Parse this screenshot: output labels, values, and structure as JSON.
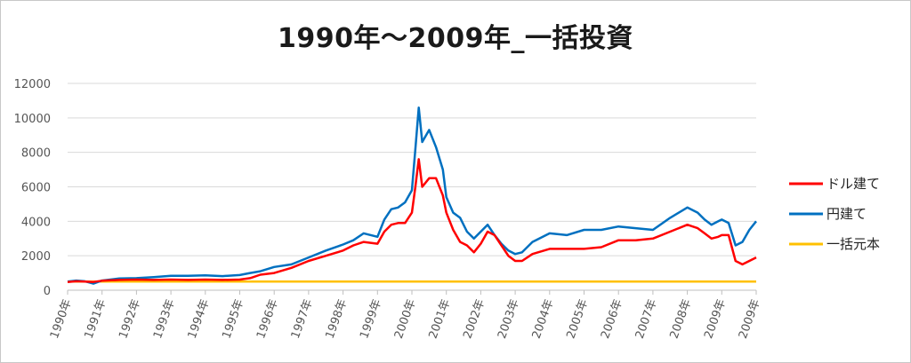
{
  "chart_data": {
    "type": "line",
    "title": "1990年～2009年_一括投資",
    "xlabel": "",
    "ylabel": "",
    "ylim": [
      0,
      12000
    ],
    "yticks": [
      0,
      2000,
      4000,
      6000,
      8000,
      10000,
      12000
    ],
    "categories": [
      "1990年",
      "1991年",
      "1992年",
      "1993年",
      "1994年",
      "1995年",
      "1996年",
      "1997年",
      "1998年",
      "1999年",
      "2000年",
      "2001年",
      "2002年",
      "2003年",
      "2004年",
      "2005年",
      "2006年",
      "2007年",
      "2008年",
      "2009年",
      "2009年"
    ],
    "grid": true,
    "legend_position": "right",
    "series": [
      {
        "name": "ドル建て",
        "color": "#ff0000",
        "x": [
          0,
          0.25,
          0.5,
          0.75,
          1,
          1.5,
          2,
          2.5,
          3,
          3.5,
          4,
          4.5,
          5,
          5.3,
          5.6,
          6,
          6.5,
          7,
          7.5,
          8,
          8.3,
          8.6,
          9,
          9.2,
          9.4,
          9.6,
          9.8,
          10,
          10.1,
          10.2,
          10.3,
          10.5,
          10.7,
          10.9,
          11,
          11.2,
          11.4,
          11.6,
          11.8,
          12,
          12.2,
          12.4,
          12.6,
          12.8,
          13,
          13.2,
          13.5,
          14,
          14.5,
          15,
          15.5,
          16,
          16.5,
          17,
          17.5,
          18,
          18.3,
          18.5,
          18.7,
          18.9,
          19,
          19.2,
          19.4,
          19.6,
          19.8,
          20
        ],
        "values": [
          480,
          520,
          500,
          480,
          550,
          600,
          620,
          600,
          620,
          600,
          620,
          600,
          620,
          700,
          900,
          1000,
          1300,
          1700,
          2000,
          2300,
          2600,
          2800,
          2700,
          3400,
          3800,
          3900,
          3900,
          4500,
          6000,
          7600,
          6000,
          6500,
          6500,
          5500,
          4500,
          3500,
          2800,
          2600,
          2200,
          2700,
          3400,
          3200,
          2600,
          2000,
          1700,
          1700,
          2100,
          2400,
          2400,
          2400,
          2500,
          2900,
          2900,
          3000,
          3400,
          3800,
          3600,
          3300,
          3000,
          3100,
          3200,
          3200,
          1700,
          1500,
          1700,
          1900
        ]
      },
      {
        "name": "円建て",
        "color": "#0070c0",
        "x": [
          0,
          0.25,
          0.5,
          0.75,
          1,
          1.5,
          2,
          2.5,
          3,
          3.5,
          4,
          4.5,
          5,
          5.3,
          5.6,
          6,
          6.5,
          7,
          7.5,
          8,
          8.3,
          8.6,
          9,
          9.2,
          9.4,
          9.6,
          9.8,
          10,
          10.1,
          10.2,
          10.3,
          10.5,
          10.7,
          10.9,
          11,
          11.2,
          11.4,
          11.6,
          11.8,
          12,
          12.2,
          12.4,
          12.6,
          12.8,
          13,
          13.2,
          13.5,
          14,
          14.5,
          15,
          15.5,
          16,
          16.5,
          17,
          17.5,
          18,
          18.3,
          18.5,
          18.7,
          18.9,
          19,
          19.2,
          19.4,
          19.6,
          19.8,
          20
        ],
        "values": [
          500,
          560,
          520,
          380,
          560,
          680,
          700,
          760,
          840,
          840,
          860,
          820,
          880,
          1000,
          1100,
          1350,
          1500,
          1900,
          2300,
          2650,
          2900,
          3300,
          3100,
          4100,
          4700,
          4800,
          5100,
          5800,
          8200,
          10600,
          8600,
          9300,
          8300,
          7000,
          5400,
          4500,
          4200,
          3400,
          3000,
          3400,
          3800,
          3200,
          2700,
          2300,
          2100,
          2200,
          2800,
          3300,
          3200,
          3500,
          3500,
          3700,
          3600,
          3500,
          4200,
          4800,
          4500,
          4100,
          3800,
          4000,
          4100,
          3900,
          2600,
          2800,
          3500,
          4000
        ]
      },
      {
        "name": "一括元本",
        "color": "#ffc000",
        "x": [
          0,
          20
        ],
        "values": [
          500,
          500
        ]
      }
    ]
  }
}
